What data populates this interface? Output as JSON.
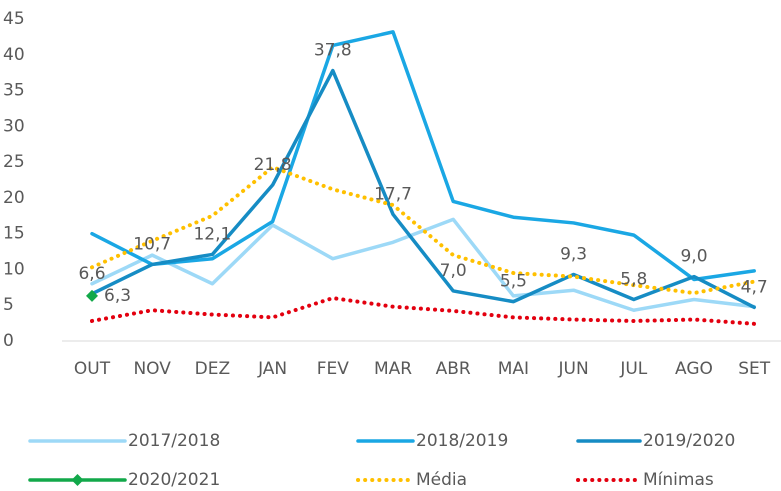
{
  "chart_data": {
    "type": "line",
    "categories": [
      "OUT",
      "NOV",
      "DEZ",
      "JAN",
      "FEV",
      "MAR",
      "ABR",
      "MAI",
      "JUN",
      "JUL",
      "AGO",
      "SET"
    ],
    "ylim": [
      0,
      45
    ],
    "yticks": [
      0,
      5,
      10,
      15,
      20,
      25,
      30,
      35,
      40,
      45
    ],
    "legend": "bottom",
    "series": [
      {
        "name": "2017/2018",
        "color": "#9dd9f7",
        "values": [
          8,
          12,
          8,
          16.2,
          11.5,
          13.8,
          17,
          6.3,
          7.1,
          4.3,
          5.8,
          4.8
        ]
      },
      {
        "name": "2018/2019",
        "color": "#1aa7e4",
        "values": [
          15,
          10.7,
          11.5,
          16.7,
          41.3,
          43.2,
          19.5,
          17.3,
          16.5,
          14.8,
          8.6,
          9.8
        ]
      },
      {
        "name": "2019/2020",
        "color": "#168cc4",
        "values": [
          6.6,
          10.7,
          12.1,
          21.8,
          37.8,
          17.7,
          7.0,
          5.5,
          9.3,
          5.8,
          9.0,
          4.7
        ],
        "value_labels": [
          "6,6",
          "10,7",
          "12,1",
          "21,8",
          "37,8",
          "17,7",
          "7,0",
          "5,5",
          "9,3",
          "5,8",
          "9,0",
          "4,7"
        ]
      },
      {
        "name": "2020/2021",
        "color": "#12a84a",
        "marker": "diamond",
        "values": [
          6.3,
          null,
          null,
          null,
          null,
          null,
          null,
          null,
          null,
          null,
          null,
          null
        ],
        "value_labels": [
          "6,3",
          null,
          null,
          null,
          null,
          null,
          null,
          null,
          null,
          null,
          null,
          null
        ]
      },
      {
        "name": "Média",
        "color": "#ffc000",
        "dash": "dotted",
        "values": [
          10.3,
          14,
          17.5,
          24.3,
          21.2,
          19,
          12,
          9.5,
          9,
          7.8,
          6.7,
          8.3
        ]
      },
      {
        "name": "Mínimas",
        "color": "#e3000f",
        "dash": "dotted",
        "values": [
          2.8,
          4.3,
          3.7,
          3.3,
          6,
          4.8,
          4.2,
          3.3,
          3,
          2.8,
          3,
          2.4
        ]
      }
    ]
  }
}
